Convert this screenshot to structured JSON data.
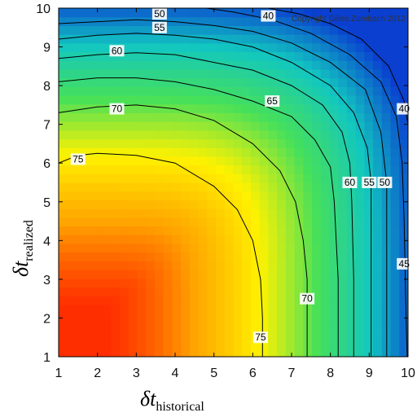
{
  "chart_data": {
    "type": "heatmap",
    "title": "",
    "x_range": [
      1,
      10
    ],
    "y_range": [
      1,
      10
    ],
    "x_ticks": [
      "1",
      "2",
      "3",
      "4",
      "5",
      "6",
      "7",
      "8",
      "9",
      "10"
    ],
    "y_ticks": [
      "1",
      "2",
      "3",
      "4",
      "5",
      "6",
      "7",
      "8",
      "9",
      "10"
    ],
    "xlabel": {
      "symbol": "δt",
      "subscript": "historical"
    },
    "ylabel": {
      "symbol": "δt",
      "subscript": "realized"
    },
    "copyright": "Copyright Gilles Zumbach 2012",
    "colorscale": [
      "#0a3fd0",
      "#12c7c0",
      "#46e05a",
      "#fff200",
      "#ffa400",
      "#ff1e00"
    ],
    "value_range": [
      38,
      80
    ],
    "contour_labels": [
      {
        "text": "75",
        "x": 1.5,
        "y": 6.1
      },
      {
        "text": "75",
        "x": 6.2,
        "y": 1.5
      },
      {
        "text": "70",
        "x": 2.5,
        "y": 7.4
      },
      {
        "text": "70",
        "x": 7.4,
        "y": 2.5
      },
      {
        "text": "65",
        "x": 6.5,
        "y": 7.6
      },
      {
        "text": "60",
        "x": 2.5,
        "y": 8.9
      },
      {
        "text": "60",
        "x": 8.5,
        "y": 5.5
      },
      {
        "text": "55",
        "x": 3.6,
        "y": 9.5
      },
      {
        "text": "55",
        "x": 9.0,
        "y": 5.5
      },
      {
        "text": "50",
        "x": 3.6,
        "y": 9.85
      },
      {
        "text": "50",
        "x": 9.4,
        "y": 5.5
      },
      {
        "text": "45",
        "x": 9.9,
        "y": 3.4
      },
      {
        "text": "40",
        "x": 9.9,
        "y": 7.4
      },
      {
        "text": "40",
        "x": 6.4,
        "y": 9.8
      }
    ],
    "contours": [
      {
        "level": 75,
        "points": [
          [
            1.0,
            6.0
          ],
          [
            1.5,
            6.2
          ],
          [
            2.0,
            6.25
          ],
          [
            3.0,
            6.2
          ],
          [
            4.0,
            6.0
          ],
          [
            5.0,
            5.4
          ],
          [
            5.6,
            4.8
          ],
          [
            6.0,
            4.0
          ],
          [
            6.2,
            3.0
          ],
          [
            6.25,
            2.0
          ],
          [
            6.25,
            1.0
          ]
        ]
      },
      {
        "level": 70,
        "points": [
          [
            1.0,
            7.3
          ],
          [
            2.0,
            7.45
          ],
          [
            3.0,
            7.5
          ],
          [
            4.0,
            7.4
          ],
          [
            5.0,
            7.1
          ],
          [
            6.0,
            6.5
          ],
          [
            6.7,
            5.8
          ],
          [
            7.1,
            5.0
          ],
          [
            7.3,
            4.0
          ],
          [
            7.4,
            3.0
          ],
          [
            7.4,
            1.0
          ]
        ]
      },
      {
        "level": 65,
        "points": [
          [
            1.0,
            8.1
          ],
          [
            2.0,
            8.2
          ],
          [
            3.0,
            8.2
          ],
          [
            4.0,
            8.1
          ],
          [
            5.0,
            7.9
          ],
          [
            6.0,
            7.6
          ],
          [
            7.0,
            7.2
          ],
          [
            7.6,
            6.6
          ],
          [
            8.0,
            5.9
          ],
          [
            8.1,
            5.0
          ],
          [
            8.2,
            3.0
          ],
          [
            8.2,
            1.0
          ]
        ]
      },
      {
        "level": 60,
        "points": [
          [
            1.0,
            8.7
          ],
          [
            2.0,
            8.8
          ],
          [
            3.0,
            8.85
          ],
          [
            4.0,
            8.8
          ],
          [
            5.0,
            8.6
          ],
          [
            6.0,
            8.4
          ],
          [
            7.0,
            8.0
          ],
          [
            7.8,
            7.5
          ],
          [
            8.3,
            6.8
          ],
          [
            8.5,
            6.0
          ],
          [
            8.55,
            5.0
          ],
          [
            8.6,
            3.0
          ],
          [
            8.6,
            1.0
          ]
        ]
      },
      {
        "level": 55,
        "points": [
          [
            1.0,
            9.2
          ],
          [
            2.0,
            9.3
          ],
          [
            3.0,
            9.35
          ],
          [
            4.0,
            9.3
          ],
          [
            5.0,
            9.2
          ],
          [
            6.0,
            9.0
          ],
          [
            7.0,
            8.6
          ],
          [
            8.0,
            8.0
          ],
          [
            8.6,
            7.3
          ],
          [
            8.95,
            6.4
          ],
          [
            9.05,
            5.5
          ],
          [
            9.05,
            3.0
          ],
          [
            9.05,
            1.0
          ]
        ]
      },
      {
        "level": 50,
        "points": [
          [
            1.0,
            9.6
          ],
          [
            2.0,
            9.65
          ],
          [
            3.0,
            9.7
          ],
          [
            4.0,
            9.65
          ],
          [
            5.0,
            9.55
          ],
          [
            6.0,
            9.4
          ],
          [
            7.0,
            9.1
          ],
          [
            8.0,
            8.6
          ],
          [
            8.9,
            7.9
          ],
          [
            9.3,
            6.8
          ],
          [
            9.45,
            5.5
          ],
          [
            9.45,
            3.0
          ],
          [
            9.45,
            1.0
          ]
        ]
      },
      {
        "level": 45,
        "points": [
          [
            4.8,
            10.0
          ],
          [
            5.5,
            9.9
          ],
          [
            6.5,
            9.7
          ],
          [
            7.5,
            9.35
          ],
          [
            8.5,
            8.8
          ],
          [
            9.3,
            8.1
          ],
          [
            9.7,
            7.2
          ],
          [
            9.85,
            6.0
          ],
          [
            9.9,
            4.5
          ],
          [
            9.95,
            2.0
          ],
          [
            9.98,
            1.0
          ]
        ]
      },
      {
        "level": 40,
        "points": [
          [
            6.4,
            10.0
          ],
          [
            7.2,
            9.85
          ],
          [
            8.0,
            9.6
          ],
          [
            8.8,
            9.2
          ],
          [
            9.5,
            8.5
          ],
          [
            9.9,
            7.6
          ],
          [
            10.0,
            7.0
          ]
        ]
      }
    ]
  }
}
